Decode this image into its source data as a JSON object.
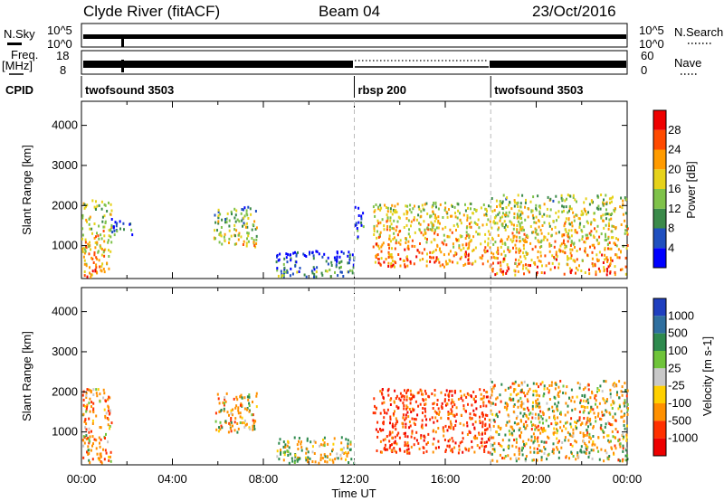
{
  "header": {
    "title": "Clyde River (fitACF)",
    "beam": "Beam 04",
    "date": "23/Oct/2016"
  },
  "top_panels": {
    "nsky_label": "N.Sky",
    "nsky_ticks": [
      "10^5",
      "10^0"
    ],
    "nsearch_label": "N.Search",
    "nsearch_ticks": [
      "10^5",
      "10^0"
    ],
    "freq_label": "Freq.",
    "freq_unit": "[MHz]",
    "freq_ticks": [
      "18",
      "8"
    ],
    "nave_label": "Nave",
    "nave_ticks": [
      "60",
      "0"
    ],
    "cpid_label": "CPID",
    "cpid_segments": [
      {
        "name": "twofsound 3503",
        "start_h": 0,
        "end_h": 12
      },
      {
        "name": "rbsp 200",
        "start_h": 12,
        "end_h": 18
      },
      {
        "name": "twofsound 3503",
        "start_h": 18,
        "end_h": 24
      }
    ]
  },
  "chart_data": [
    {
      "type": "heatmap",
      "title": "Power",
      "xlabel": "",
      "ylabel": "Slant Range [km]",
      "xlim": [
        0,
        24
      ],
      "ylim": [
        180,
        4600
      ],
      "yticks": [
        "1000",
        "2000",
        "3000",
        "4000"
      ],
      "colorbar": {
        "label": "Power [dB]",
        "ticks": [
          "4",
          "8",
          "12",
          "16",
          "20",
          "24",
          "28"
        ],
        "range": [
          0,
          32
        ],
        "colors": [
          "#0000ff",
          "#1f4fbf",
          "#3b8a4a",
          "#7fc24a",
          "#e6d21a",
          "#ff9b00",
          "#ff4a00",
          "#ee0000"
        ]
      },
      "clusters": [
        {
          "t0": 0.0,
          "t1": 1.3,
          "r0": 250,
          "r1": 2200,
          "mean": 24
        },
        {
          "t0": 1.3,
          "t1": 2.2,
          "r0": 1300,
          "r1": 1700,
          "mean": 10
        },
        {
          "t0": 5.8,
          "t1": 7.7,
          "r0": 1000,
          "r1": 2000,
          "mean": 20
        },
        {
          "t0": 8.5,
          "t1": 12.0,
          "r0": 250,
          "r1": 900,
          "mean": 12
        },
        {
          "t0": 12.0,
          "t1": 12.4,
          "r0": 1200,
          "r1": 2000,
          "mean": 10
        },
        {
          "t0": 12.8,
          "t1": 18.0,
          "r0": 500,
          "r1": 2100,
          "mean": 25
        },
        {
          "t0": 18.0,
          "t1": 24.0,
          "r0": 300,
          "r1": 2300,
          "mean": 24
        }
      ]
    },
    {
      "type": "heatmap",
      "title": "Velocity",
      "xlabel": "Time UT",
      "ylabel": "Slant Range [km]",
      "xlim": [
        0,
        24
      ],
      "ylim": [
        180,
        4600
      ],
      "xticks": [
        "00:00",
        "04:00",
        "08:00",
        "12:00",
        "16:00",
        "20:00",
        "00:00"
      ],
      "yticks": [
        "1000",
        "2000",
        "3000",
        "4000"
      ],
      "colorbar": {
        "label": "Velocity [m s-1]",
        "ticks": [
          "1000",
          "500",
          "100",
          "25",
          "-25",
          "-100",
          "-500",
          "-1000"
        ],
        "colors": [
          "#1f3fbf",
          "#2f6f9f",
          "#2e8a4e",
          "#6fc43a",
          "#c8c8c8",
          "#ffd000",
          "#ff9000",
          "#ff3000",
          "#ee0000"
        ]
      },
      "clusters": [
        {
          "t0": 0.0,
          "t1": 1.3,
          "r0": 250,
          "r1": 2100,
          "mean": -300
        },
        {
          "t0": 5.8,
          "t1": 7.7,
          "r0": 1000,
          "r1": 2000,
          "mean": -150
        },
        {
          "t0": 8.5,
          "t1": 12.0,
          "r0": 250,
          "r1": 900,
          "mean": -50
        },
        {
          "t0": 12.8,
          "t1": 18.0,
          "r0": 500,
          "r1": 2100,
          "mean": -700
        },
        {
          "t0": 18.0,
          "t1": 24.0,
          "r0": 300,
          "r1": 2300,
          "mean": -150
        }
      ]
    }
  ]
}
